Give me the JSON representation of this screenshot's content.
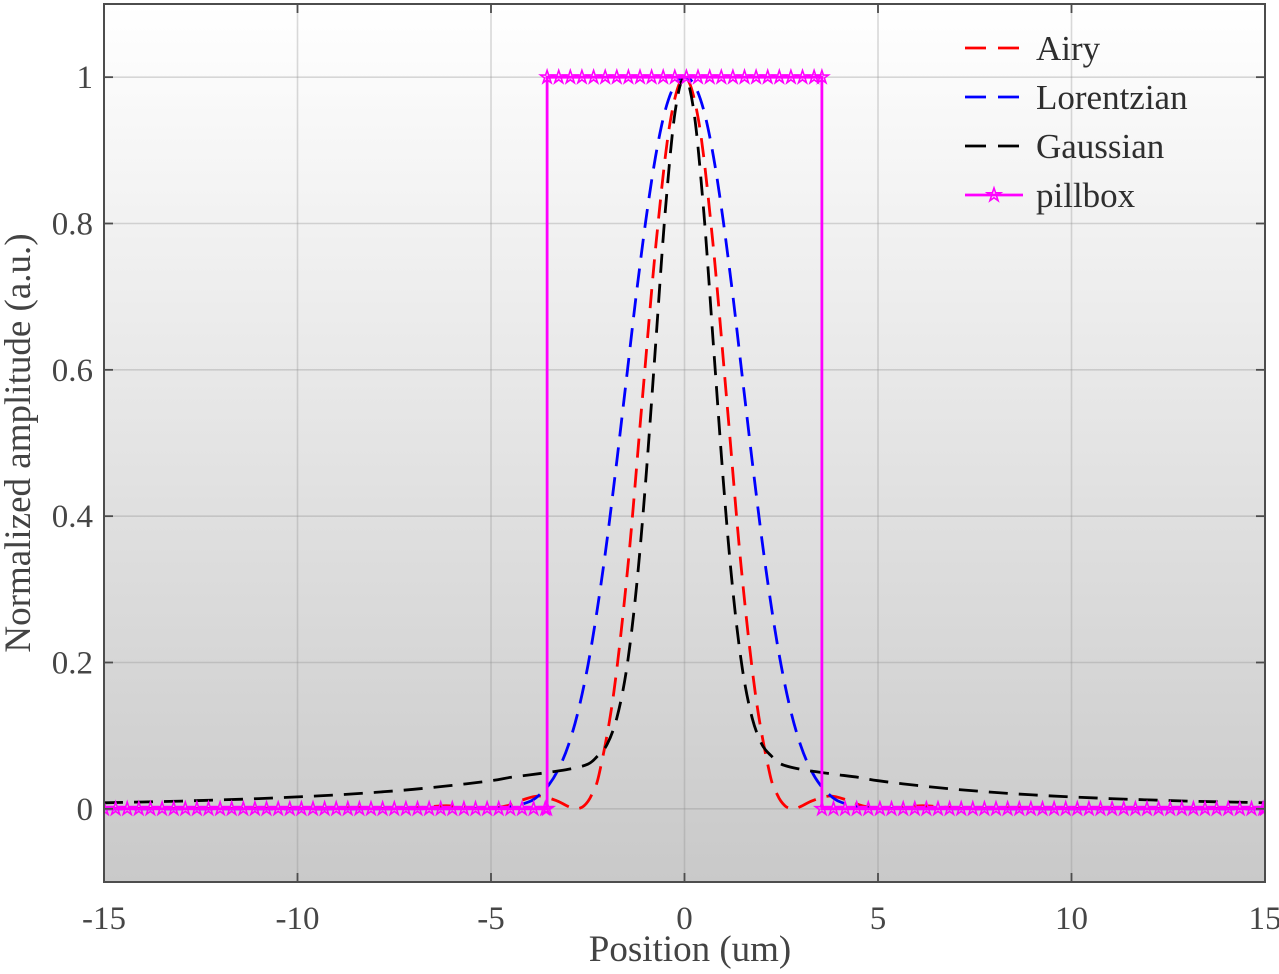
{
  "chart_data": {
    "type": "line",
    "title": "",
    "xlabel": "Position (um)",
    "ylabel": "Normalized amplitude (a.u.)",
    "xlim": [
      -15,
      15
    ],
    "ylim": [
      -0.1,
      1.1
    ],
    "xtick_values": [
      -15,
      -10,
      -5,
      0,
      5,
      10,
      15
    ],
    "xtick_labels": [
      "-15",
      "-10",
      "-5",
      "0",
      "5",
      "10",
      "15"
    ],
    "ytick_values": [
      0,
      0.2,
      0.4,
      0.6,
      0.8,
      1
    ],
    "ytick_labels": [
      "0",
      "0.2",
      "0.4",
      "0.6",
      "0.8",
      "1"
    ],
    "grid": true,
    "legend": {
      "position": "northeast",
      "frame": false,
      "labels": [
        "Airy",
        "Lorentzian",
        "Gaussian",
        "pillbox"
      ]
    },
    "series": [
      {
        "name": "Airy",
        "color": "#ff0000",
        "line_style": "dashed",
        "marker": "none",
        "symmetric": true,
        "points": [
          [
            0,
            1
          ],
          [
            0.37,
            0.939
          ],
          [
            0.73,
            0.775
          ],
          [
            1.1,
            0.553
          ],
          [
            1.46,
            0.333
          ],
          [
            1.83,
            0.158
          ],
          [
            2.19,
            0.051
          ],
          [
            2.4,
            0.019
          ],
          [
            2.6,
            0.004
          ],
          [
            2.8,
            0
          ],
          [
            3.0,
            0.003
          ],
          [
            3.3,
            0.011
          ],
          [
            3.76,
            0.0175
          ],
          [
            4.2,
            0.012
          ],
          [
            4.6,
            0.004
          ],
          [
            5.13,
            0
          ],
          [
            5.6,
            0.002
          ],
          [
            6.15,
            0.0042
          ],
          [
            6.8,
            0.002
          ],
          [
            7.43,
            0
          ],
          [
            8.5,
            0.0016
          ],
          [
            9.4,
            0
          ],
          [
            10.5,
            0.0008
          ],
          [
            12,
            0.0004
          ],
          [
            13.5,
            0.0005
          ],
          [
            15,
            0.0002
          ]
        ]
      },
      {
        "name": "Lorentzian",
        "color": "#0000ff",
        "line_style": "dashed",
        "marker": "none",
        "symmetric": true,
        "points": [
          [
            0,
            1
          ],
          [
            0.25,
            0.99
          ],
          [
            0.5,
            0.954
          ],
          [
            0.75,
            0.891
          ],
          [
            1.0,
            0.804
          ],
          [
            1.25,
            0.701
          ],
          [
            1.5,
            0.588
          ],
          [
            1.75,
            0.475
          ],
          [
            2.0,
            0.368
          ],
          [
            2.25,
            0.274
          ],
          [
            2.5,
            0.195
          ],
          [
            2.75,
            0.133
          ],
          [
            3.0,
            0.087
          ],
          [
            3.25,
            0.055
          ],
          [
            3.5,
            0.033
          ],
          [
            3.75,
            0.019
          ],
          [
            4.0,
            0.01
          ],
          [
            4.5,
            0.0026
          ],
          [
            5.0,
            0.0006
          ],
          [
            6.0,
            0.0002
          ],
          [
            8.0,
            0.0001
          ],
          [
            11.0,
            0
          ],
          [
            15.0,
            0
          ]
        ]
      },
      {
        "name": "Gaussian",
        "color": "#000000",
        "line_style": "dashed",
        "marker": "none",
        "symmetric": true,
        "points": [
          [
            0,
            1
          ],
          [
            0.25,
            0.95
          ],
          [
            0.5,
            0.814
          ],
          [
            0.75,
            0.632
          ],
          [
            1.0,
            0.45
          ],
          [
            1.25,
            0.298
          ],
          [
            1.5,
            0.19
          ],
          [
            1.75,
            0.124
          ],
          [
            2.0,
            0.088
          ],
          [
            2.25,
            0.072
          ],
          [
            2.5,
            0.061
          ],
          [
            3.0,
            0.054
          ],
          [
            3.5,
            0.05
          ],
          [
            4.0,
            0.0464
          ],
          [
            4.5,
            0.043
          ],
          [
            5.0,
            0.0384
          ],
          [
            6.0,
            0.032
          ],
          [
            7.0,
            0.0267
          ],
          [
            8.0,
            0.0225
          ],
          [
            9.0,
            0.019
          ],
          [
            10,
            0.0163
          ],
          [
            11,
            0.014
          ],
          [
            12,
            0.0122
          ],
          [
            13,
            0.0106
          ],
          [
            14,
            0.0094
          ],
          [
            15,
            0.0083
          ]
        ]
      },
      {
        "name": "pillbox",
        "color": "#ff00ff",
        "line_style": "solid",
        "marker": "pentagram",
        "pillbox": {
          "edges": [
            -3.55,
            3.55
          ],
          "inside_level": 1,
          "outside_level": 0,
          "marker_step": 0.3
        }
      }
    ]
  },
  "colors": {
    "axis": "#4d4d4d",
    "tick_label": "#464646",
    "grid": "#8c8c8c",
    "plot_bg_top": "#ffffff",
    "plot_bg_bottom": "#c9c9c9",
    "page_bg": "#ffffff"
  }
}
